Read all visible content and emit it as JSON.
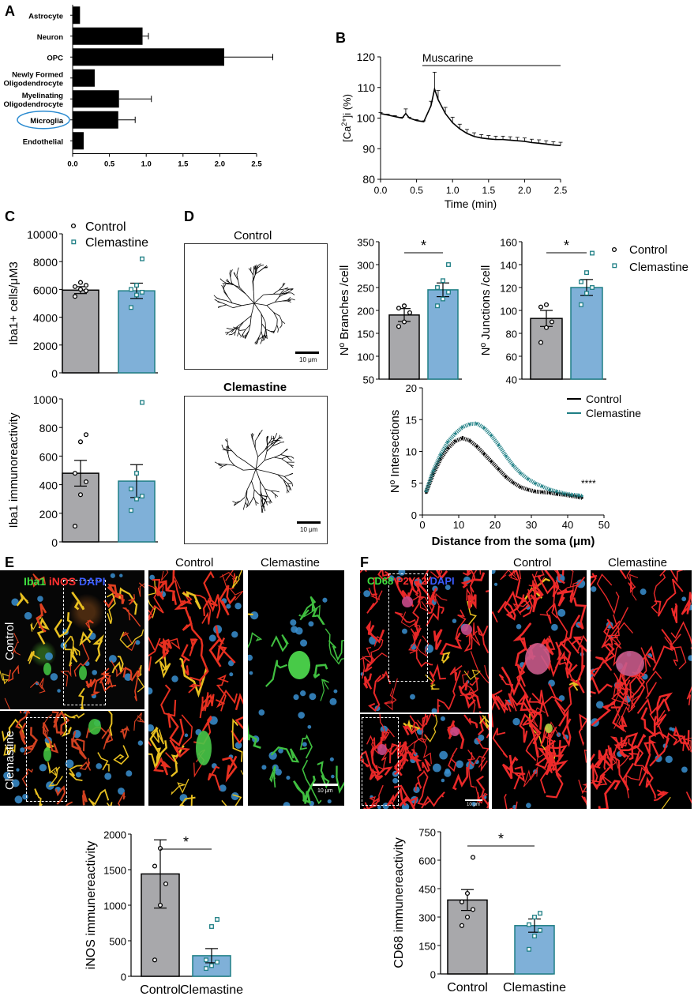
{
  "panel_letters": {
    "A": "A",
    "B": "B",
    "C": "C",
    "D": "D",
    "E": "E",
    "F": "F"
  },
  "colors": {
    "control_gray": "#a8a8ab",
    "clemastine_blue": "#7fb0d8",
    "teal": "#1f7f85",
    "black": "#000000"
  },
  "chart_data": [
    {
      "id": "A",
      "type": "bar",
      "orientation": "horizontal",
      "categories": [
        "Astrocyte",
        "Neuron",
        "OPC",
        "Newly Formed Oligodendrocyte",
        "Myelinating Oligodendrocyte",
        "Microglia",
        "Endothelial"
      ],
      "category_lines": [
        [
          "Astrocyte"
        ],
        [
          "Neuron"
        ],
        [
          "OPC"
        ],
        [
          "Newly Formed",
          "Oligodendrocyte"
        ],
        [
          "Myelinating",
          "Oligodendrocyte"
        ],
        [
          "Microglia"
        ],
        [
          "Endothelial"
        ]
      ],
      "values": [
        0.1,
        0.95,
        2.06,
        0.3,
        0.63,
        0.62,
        0.15
      ],
      "errors": [
        0,
        0.08,
        0.66,
        0,
        0.44,
        0.23,
        0
      ],
      "xlim": [
        0,
        2.5
      ],
      "xticks": [
        "0.0",
        "0.5",
        "1.0",
        "1.5",
        "2.0",
        "2.5"
      ],
      "highlight": "Microglia"
    },
    {
      "id": "B",
      "type": "line",
      "annotation": "Muscarine",
      "ylabel": "[Ca2+]i (%)",
      "xlabel": "Time (min)",
      "xlim": [
        0,
        2.5
      ],
      "ylim": [
        80,
        120
      ],
      "xticks": [
        "0.0",
        "0.5",
        "1.0",
        "1.5",
        "2.0",
        "2.5"
      ],
      "yticks": [
        "80",
        "90",
        "100",
        "110",
        "120"
      ],
      "x": [
        0.0,
        0.1,
        0.2,
        0.3,
        0.35,
        0.4,
        0.5,
        0.6,
        0.7,
        0.75,
        0.8,
        0.9,
        1.0,
        1.1,
        1.2,
        1.3,
        1.4,
        1.5,
        1.6,
        1.7,
        1.8,
        1.9,
        2.0,
        2.1,
        2.2,
        2.3,
        2.4,
        2.5
      ],
      "y": [
        101.5,
        101,
        100.5,
        100,
        101.5,
        100,
        99.2,
        98.8,
        104,
        109.5,
        106,
        101.5,
        98.5,
        96.5,
        95,
        94,
        93.5,
        93.2,
        93,
        93,
        92.8,
        92.6,
        92.4,
        92,
        91.8,
        91.5,
        91.2,
        91
      ],
      "err": [
        0.3,
        0.3,
        0.3,
        0.3,
        1.5,
        0.3,
        0.3,
        0.3,
        1.5,
        5.5,
        3,
        2,
        1.8,
        1.5,
        1.3,
        1.2,
        1.1,
        1.1,
        1.1,
        1.1,
        1.1,
        1.1,
        1.1,
        1.1,
        1.1,
        1.1,
        1.1,
        1.1
      ]
    },
    {
      "id": "C_top",
      "type": "bar",
      "legend": [
        "Control",
        "Clemastine"
      ],
      "ylabel": "Iba1+ cells/μM3",
      "ylim": [
        0,
        10000
      ],
      "yticks": [
        "0",
        "2000",
        "4000",
        "6000",
        "8000",
        "10000"
      ],
      "values": [
        5950,
        5900
      ],
      "errors": [
        250,
        550
      ],
      "points": [
        [
          5500,
          6000,
          6300,
          6200,
          6500,
          5900
        ],
        [
          4700,
          5600,
          5800,
          6000,
          6300,
          8200
        ]
      ]
    },
    {
      "id": "C_bottom",
      "type": "bar",
      "ylabel": "Iba1 immunoreactivity",
      "ylim": [
        0,
        1000
      ],
      "yticks": [
        "0",
        "200",
        "400",
        "600",
        "800",
        "1000"
      ],
      "values": [
        480,
        425
      ],
      "errors": [
        90,
        115
      ],
      "points": [
        [
          110,
          330,
          420,
          480,
          700,
          750
        ],
        [
          220,
          300,
          320,
          370,
          480,
          975
        ]
      ]
    },
    {
      "id": "D_branches",
      "type": "bar",
      "ylabel": "Nº Branches /cell",
      "ylim": [
        50,
        350
      ],
      "yticks": [
        "50",
        "100",
        "150",
        "200",
        "250",
        "300",
        "350"
      ],
      "values": [
        190,
        245
      ],
      "errors": [
        14,
        15
      ],
      "points": [
        [
          165,
          175,
          195,
          205,
          210
        ],
        [
          210,
          225,
          240,
          250,
          265,
          300
        ]
      ],
      "significance": "*"
    },
    {
      "id": "D_junctions",
      "type": "bar",
      "ylabel": "Nº Junctions /cell",
      "ylim": [
        40,
        160
      ],
      "yticks": [
        "40",
        "60",
        "80",
        "100",
        "120",
        "140",
        "160"
      ],
      "values": [
        93,
        120
      ],
      "errors": [
        7,
        7
      ],
      "points": [
        [
          72,
          85,
          90,
          103,
          105
        ],
        [
          105,
          115,
          120,
          125,
          133,
          150
        ]
      ],
      "significance": "*",
      "legend": [
        "Control",
        "Clemastine"
      ]
    },
    {
      "id": "D_sholl",
      "type": "line",
      "xlabel": "Distance from the soma (μm)",
      "ylabel": "Nº Intersections",
      "xlim": [
        0,
        50
      ],
      "ylim": [
        0,
        20
      ],
      "xticks": [
        "0",
        "10",
        "20",
        "30",
        "40",
        "50"
      ],
      "yticks": [
        "0",
        "5",
        "10",
        "15",
        "20"
      ],
      "series": [
        {
          "name": "Control",
          "x": [
            1,
            3,
            5,
            7,
            9,
            11,
            13,
            15,
            17,
            19,
            21,
            23,
            25,
            27,
            29,
            31,
            33,
            35,
            37,
            39,
            41,
            43,
            44
          ],
          "y": [
            3.5,
            6.5,
            8.8,
            10.5,
            11.6,
            12.1,
            11.7,
            10.8,
            9.6,
            8.4,
            7.2,
            6.0,
            5.1,
            4.4,
            4.0,
            3.7,
            3.6,
            3.5,
            3.3,
            3.2,
            3.0,
            2.8,
            2.7
          ]
        },
        {
          "name": "Clemastine",
          "x": [
            1,
            3,
            5,
            7,
            9,
            11,
            13,
            15,
            17,
            19,
            21,
            23,
            25,
            27,
            29,
            31,
            33,
            35,
            37,
            39,
            41,
            43,
            44
          ],
          "y": [
            3.7,
            7.0,
            9.5,
            11.5,
            12.8,
            13.8,
            14.3,
            14.4,
            13.7,
            12.5,
            11.0,
            9.3,
            7.8,
            6.6,
            5.7,
            5.0,
            4.5,
            4.0,
            3.7,
            3.4,
            3.2,
            3.1,
            3.0
          ]
        }
      ],
      "significance": "****"
    },
    {
      "id": "E_bottom",
      "type": "bar",
      "categories": [
        "Control",
        "Clemastine"
      ],
      "ylabel": "iNOS immunereactivity",
      "ylim": [
        0,
        2000
      ],
      "yticks": [
        "0",
        "500",
        "1000",
        "1500",
        "2000"
      ],
      "values": [
        1440,
        290
      ],
      "errors": [
        480,
        100
      ],
      "points": [
        [
          230,
          1000,
          1300,
          1550,
          1800
        ],
        [
          110,
          150,
          200,
          230,
          700,
          800
        ]
      ],
      "significance": "*"
    },
    {
      "id": "F_bottom",
      "type": "bar",
      "categories": [
        "Control",
        "Clemastine"
      ],
      "ylabel": "CD68 immunereactivity",
      "ylim": [
        0,
        750
      ],
      "yticks": [
        "0",
        "150",
        "300",
        "450",
        "600",
        "750"
      ],
      "values": [
        390,
        255
      ],
      "errors": [
        55,
        35
      ],
      "points": [
        [
          255,
          300,
          340,
          380,
          425,
          615
        ],
        [
          130,
          200,
          230,
          260,
          300,
          320
        ]
      ],
      "significance": "*"
    }
  ],
  "D_micrographs": {
    "control_title": "Control",
    "clemastine_title": "Clemastine",
    "scale": "10 μm"
  },
  "E_micro": {
    "stain_1": "Iba1",
    "stain_2": "iNOS",
    "stain_3": "DAPI",
    "row_control": "Control",
    "row_clemastine": "Clemastine",
    "col_control": "Control",
    "col_clemastine": "Clemastine",
    "scale": "10 μm"
  },
  "F_micro": {
    "stain_1": "CD68",
    "stain_2": "P2Y12",
    "stain_3": "DAPI",
    "col_control": "Control",
    "col_clemastine": "Clemastine",
    "scale": "10 μm"
  }
}
